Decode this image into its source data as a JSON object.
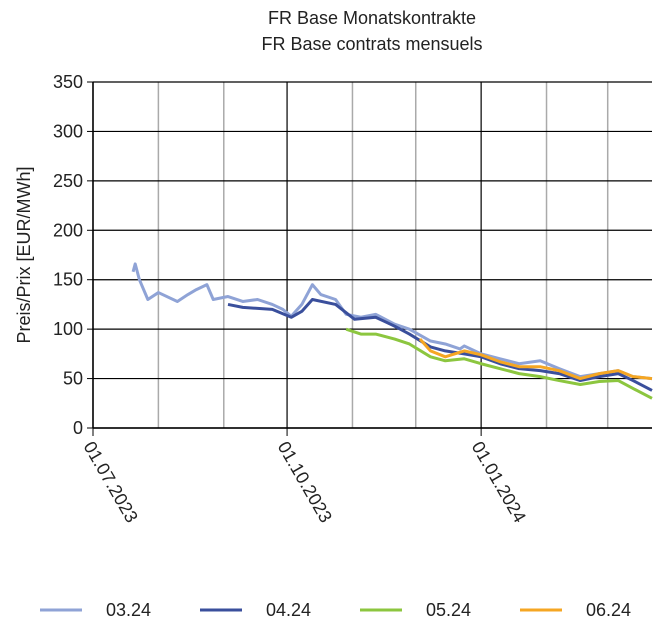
{
  "chart_data": {
    "type": "line",
    "title": "FR Base Monatskontrakte",
    "subtitle": "FR Base contrats mensuels",
    "y_label": "Preis/Prix [EUR/MWh]",
    "xlim": [
      "2023-07-01",
      "2024-03-22"
    ],
    "xticks": [
      {
        "value": "2023-07-01",
        "label": "01.07.2023"
      },
      {
        "value": "2023-10-01",
        "label": "01.10.2023"
      },
      {
        "value": "2024-01-01",
        "label": "01.01.2024"
      }
    ],
    "xminorticks": [
      "2023-08-01",
      "2023-09-01",
      "2023-11-01",
      "2023-12-01",
      "2024-02-01",
      "2024-03-01"
    ],
    "ylim": [
      0,
      350
    ],
    "yticks": [
      0,
      50,
      100,
      150,
      200,
      250,
      300,
      350
    ],
    "grid": true,
    "legend": "bottom",
    "series": [
      {
        "name": "03.24",
        "color": "#8fa3d6",
        "x": [
          "2023-07-20",
          "2023-07-21",
          "2023-07-23",
          "2023-07-27",
          "2023-08-01",
          "2023-08-10",
          "2023-08-15",
          "2023-08-19",
          "2023-08-24",
          "2023-08-27",
          "2023-09-03",
          "2023-09-10",
          "2023-09-17",
          "2023-09-24",
          "2023-09-29",
          "2023-10-03",
          "2023-10-08",
          "2023-10-13",
          "2023-10-17",
          "2023-10-24",
          "2023-10-29",
          "2023-11-05",
          "2023-11-12",
          "2023-11-21",
          "2023-11-28",
          "2023-12-08",
          "2023-12-15",
          "2023-12-22",
          "2023-12-24",
          "2024-01-01",
          "2024-01-10",
          "2024-01-19",
          "2024-01-29",
          "2024-02-07",
          "2024-02-17",
          "2024-02-26",
          "2024-03-06",
          "2024-03-13",
          "2024-03-22"
        ],
        "values": [
          158,
          166,
          150,
          130,
          137,
          128,
          135,
          140,
          145,
          130,
          133,
          128,
          130,
          125,
          120,
          113,
          125,
          145,
          135,
          130,
          115,
          112,
          115,
          105,
          100,
          88,
          85,
          80,
          83,
          75,
          70,
          65,
          68,
          60,
          52,
          55,
          58,
          52,
          50
        ]
      },
      {
        "name": "04.24",
        "color": "#3a4f9c",
        "x": [
          "2023-09-03",
          "2023-09-10",
          "2023-09-24",
          "2023-10-03",
          "2023-10-08",
          "2023-10-13",
          "2023-10-24",
          "2023-11-02",
          "2023-11-12",
          "2023-11-21",
          "2023-11-28",
          "2023-12-08",
          "2023-12-15",
          "2023-12-24",
          "2024-01-01",
          "2024-01-10",
          "2024-01-19",
          "2024-01-29",
          "2024-02-07",
          "2024-02-17",
          "2024-02-26",
          "2024-03-06",
          "2024-03-13",
          "2024-03-22"
        ],
        "values": [
          125,
          122,
          120,
          112,
          118,
          130,
          125,
          110,
          112,
          103,
          95,
          82,
          78,
          75,
          72,
          65,
          60,
          58,
          55,
          48,
          52,
          55,
          48,
          38
        ]
      },
      {
        "name": "05.24",
        "color": "#8cc63f",
        "x": [
          "2023-10-29",
          "2023-11-05",
          "2023-11-12",
          "2023-11-21",
          "2023-11-28",
          "2023-12-08",
          "2023-12-15",
          "2023-12-24",
          "2024-01-01",
          "2024-01-10",
          "2024-01-19",
          "2024-01-29",
          "2024-02-07",
          "2024-02-17",
          "2024-02-26",
          "2024-03-06",
          "2024-03-13",
          "2024-03-22"
        ],
        "values": [
          100,
          95,
          95,
          90,
          85,
          72,
          68,
          70,
          65,
          60,
          55,
          52,
          48,
          44,
          47,
          48,
          40,
          30
        ]
      },
      {
        "name": "06.24",
        "color": "#f5a623",
        "x": [
          "2023-12-03",
          "2023-12-08",
          "2023-12-15",
          "2023-12-24",
          "2024-01-01",
          "2024-01-10",
          "2024-01-19",
          "2024-01-29",
          "2024-02-07",
          "2024-02-17",
          "2024-02-26",
          "2024-03-06",
          "2024-03-13",
          "2024-03-22"
        ],
        "values": [
          90,
          78,
          72,
          78,
          74,
          67,
          62,
          62,
          58,
          50,
          55,
          58,
          52,
          50
        ]
      }
    ]
  }
}
